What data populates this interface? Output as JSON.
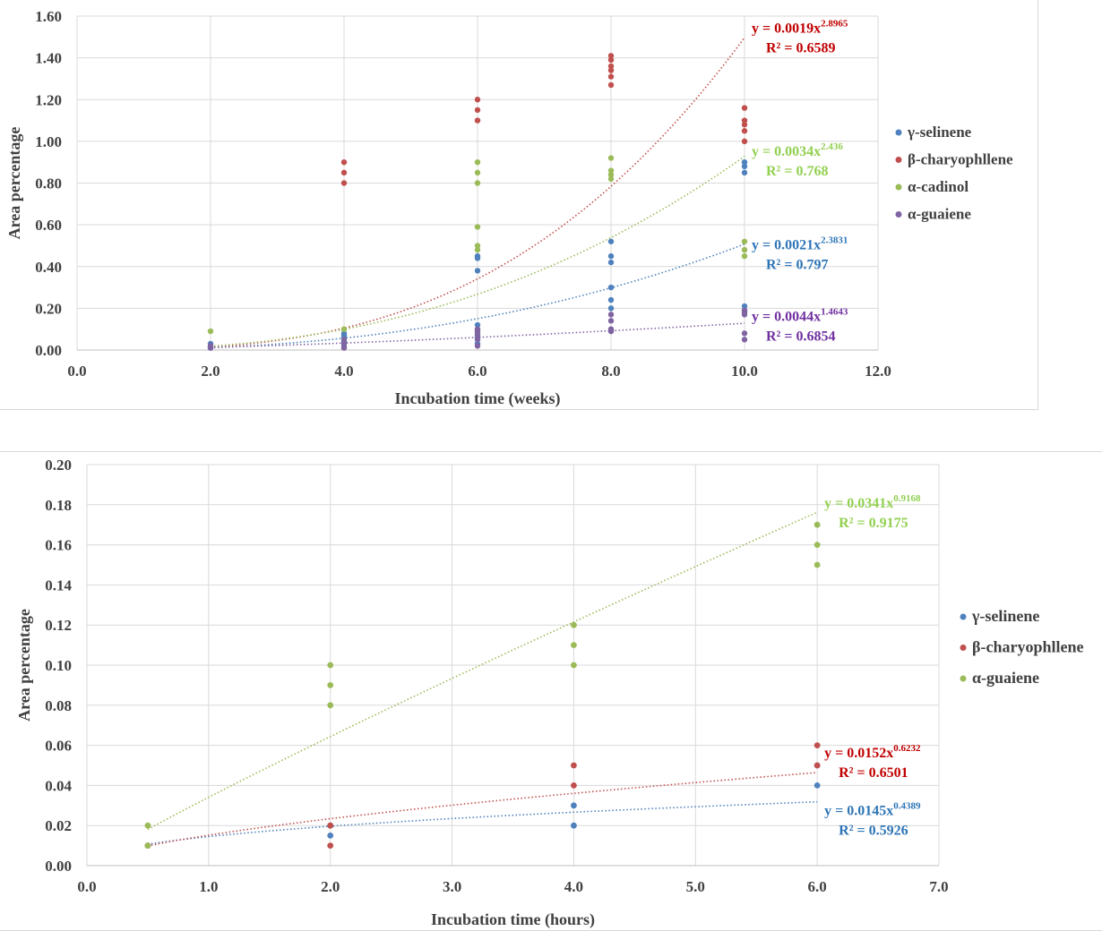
{
  "chart_data": [
    {
      "type": "scatter",
      "title": "",
      "xlabel": "Incubation time (weeks)",
      "ylabel": "Area percentage",
      "xlim": [
        0,
        12
      ],
      "ylim": [
        0,
        1.6
      ],
      "xticks": [
        0,
        2,
        4,
        6,
        8,
        10,
        12
      ],
      "yticks": [
        0,
        0.2,
        0.4,
        0.6,
        0.8,
        1.0,
        1.2,
        1.4,
        1.6
      ],
      "xtick_labels": [
        "0.0",
        "2.0",
        "4.0",
        "6.0",
        "8.0",
        "10.0",
        "12.0"
      ],
      "ytick_labels": [
        "0.00",
        "0.20",
        "0.40",
        "0.60",
        "0.80",
        "1.00",
        "1.20",
        "1.40",
        "1.60"
      ],
      "grid": true,
      "legend_position": "right",
      "series": [
        {
          "name": "γ-selinene",
          "color": "#4f81bd",
          "label_color": "#2e75b6",
          "trendline": {
            "a": 0.0021,
            "b": 2.3831,
            "eq_prefix": "y = 0.0021x",
            "exponent": "2.3831",
            "r2": "R² = 0.797",
            "label_at": [
              10,
              0.5
            ],
            "label_offset": "below-right"
          },
          "points": [
            [
              2,
              0.01
            ],
            [
              2,
              0.02
            ],
            [
              2,
              0.03
            ],
            [
              4,
              0.02
            ],
            [
              4,
              0.04
            ],
            [
              4,
              0.06
            ],
            [
              4,
              0.07
            ],
            [
              4,
              0.08
            ],
            [
              6,
              0.03
            ],
            [
              6,
              0.06
            ],
            [
              6,
              0.08
            ],
            [
              6,
              0.12
            ],
            [
              6,
              0.38
            ],
            [
              6,
              0.44
            ],
            [
              6,
              0.45
            ],
            [
              8,
              0.09
            ],
            [
              8,
              0.2
            ],
            [
              8,
              0.24
            ],
            [
              8,
              0.3
            ],
            [
              8,
              0.42
            ],
            [
              8,
              0.45
            ],
            [
              8,
              0.52
            ],
            [
              10,
              0.19
            ],
            [
              10,
              0.21
            ],
            [
              10,
              0.85
            ],
            [
              10,
              0.88
            ],
            [
              10,
              0.9
            ]
          ]
        },
        {
          "name": "β-charyophllene",
          "color": "#c0504d",
          "label_color": "#c00000",
          "trendline": {
            "a": 0.0019,
            "b": 2.8965,
            "eq_prefix": "y = 0.0019x",
            "exponent": "2.8965",
            "r2": "R² = 0.6589",
            "label_at": [
              10,
              1.52
            ],
            "label_offset": "right"
          },
          "points": [
            [
              4,
              0.8
            ],
            [
              4,
              0.85
            ],
            [
              4,
              0.9
            ],
            [
              6,
              1.1
            ],
            [
              6,
              1.15
            ],
            [
              6,
              1.2
            ],
            [
              8,
              1.27
            ],
            [
              8,
              1.31
            ],
            [
              8,
              1.34
            ],
            [
              8,
              1.36
            ],
            [
              8,
              1.39
            ],
            [
              8,
              1.41
            ],
            [
              10,
              1.0
            ],
            [
              10,
              1.05
            ],
            [
              10,
              1.08
            ],
            [
              10,
              1.1
            ],
            [
              10,
              1.16
            ]
          ]
        },
        {
          "name": "α-cadinol",
          "color": "#9bbb59",
          "label_color": "#92d050",
          "trendline": {
            "a": 0.0034,
            "b": 2.436,
            "eq_prefix": "y = 0.0034x",
            "exponent": "2.436",
            "r2": "R² = 0.768",
            "label_at": [
              10,
              0.93
            ],
            "label_offset": "right"
          },
          "points": [
            [
              2,
              0.09
            ],
            [
              4,
              0.1
            ],
            [
              6,
              0.48
            ],
            [
              6,
              0.5
            ],
            [
              6,
              0.59
            ],
            [
              6,
              0.8
            ],
            [
              6,
              0.85
            ],
            [
              6,
              0.9
            ],
            [
              8,
              0.82
            ],
            [
              8,
              0.84
            ],
            [
              8,
              0.86
            ],
            [
              8,
              0.92
            ],
            [
              10,
              0.45
            ],
            [
              10,
              0.48
            ],
            [
              10,
              0.52
            ]
          ]
        },
        {
          "name": "α-guaiene",
          "color": "#8064a2",
          "label_color": "#7030a0",
          "trendline": {
            "a": 0.0044,
            "b": 1.4643,
            "eq_prefix": "y = 0.0044x",
            "exponent": "1.4643",
            "r2": "R² = 0.6854",
            "label_at": [
              10,
              0.14
            ],
            "label_offset": "right"
          },
          "points": [
            [
              2,
              0.01
            ],
            [
              2,
              0.02
            ],
            [
              4,
              0.01
            ],
            [
              4,
              0.03
            ],
            [
              4,
              0.05
            ],
            [
              6,
              0.02
            ],
            [
              6,
              0.05
            ],
            [
              6,
              0.07
            ],
            [
              6,
              0.09
            ],
            [
              6,
              0.1
            ],
            [
              8,
              0.09
            ],
            [
              8,
              0.1
            ],
            [
              8,
              0.14
            ],
            [
              8,
              0.17
            ],
            [
              10,
              0.05
            ],
            [
              10,
              0.08
            ],
            [
              10,
              0.17
            ],
            [
              10,
              0.18
            ],
            [
              10,
              0.19
            ]
          ]
        }
      ]
    },
    {
      "type": "scatter",
      "title": "",
      "xlabel": "Incubation time (hours)",
      "ylabel": "Area percentage",
      "xlim": [
        0,
        7
      ],
      "ylim": [
        0,
        0.2
      ],
      "xticks": [
        0,
        1,
        2,
        3,
        4,
        5,
        6,
        7
      ],
      "yticks": [
        0,
        0.02,
        0.04,
        0.06,
        0.08,
        0.1,
        0.12,
        0.14,
        0.16,
        0.18,
        0.2
      ],
      "xtick_labels": [
        "0.0",
        "1.0",
        "2.0",
        "3.0",
        "4.0",
        "5.0",
        "6.0",
        "7.0"
      ],
      "ytick_labels": [
        "0.00",
        "0.02",
        "0.04",
        "0.06",
        "0.08",
        "0.10",
        "0.12",
        "0.14",
        "0.16",
        "0.18",
        "0.20"
      ],
      "grid": true,
      "legend_position": "right",
      "series": [
        {
          "name": "γ-selinene",
          "color": "#4f81bd",
          "label_color": "#2e75b6",
          "trendline": {
            "a": 0.0145,
            "b": 0.4389,
            "eq_prefix": "y = 0.0145x",
            "exponent": "0.4389",
            "r2": "R² = 0.5926",
            "label_at": [
              6,
              0.027
            ],
            "label_offset": "below-right"
          },
          "points": [
            [
              0.5,
              0.01
            ],
            [
              2,
              0.015
            ],
            [
              2,
              0.02
            ],
            [
              4,
              0.02
            ],
            [
              4,
              0.03
            ],
            [
              6,
              0.04
            ],
            [
              6,
              0.05
            ]
          ]
        },
        {
          "name": "β-charyophllene",
          "color": "#c0504d",
          "label_color": "#c00000",
          "trendline": {
            "a": 0.0152,
            "b": 0.6232,
            "eq_prefix": "y = 0.0152x",
            "exponent": "0.6232",
            "r2": "R² = 0.6501",
            "label_at": [
              6,
              0.054
            ],
            "label_offset": "right"
          },
          "points": [
            [
              0.5,
              0.01
            ],
            [
              2,
              0.01
            ],
            [
              2,
              0.02
            ],
            [
              4,
              0.04
            ],
            [
              4,
              0.05
            ],
            [
              6,
              0.05
            ],
            [
              6,
              0.06
            ]
          ]
        },
        {
          "name": "α-guaiene",
          "color": "#9bbb59",
          "label_color": "#92d050",
          "trendline": {
            "a": 0.0341,
            "b": 0.9168,
            "eq_prefix": "y = 0.0341x",
            "exponent": "0.9168",
            "r2": "R² = 0.9175",
            "label_at": [
              6,
              0.1785
            ],
            "label_offset": "right"
          },
          "points": [
            [
              0.5,
              0.01
            ],
            [
              0.5,
              0.02
            ],
            [
              2,
              0.08
            ],
            [
              2,
              0.09
            ],
            [
              2,
              0.1
            ],
            [
              4,
              0.1
            ],
            [
              4,
              0.11
            ],
            [
              4,
              0.12
            ],
            [
              6,
              0.15
            ],
            [
              6,
              0.16
            ],
            [
              6,
              0.17
            ]
          ]
        }
      ]
    }
  ]
}
